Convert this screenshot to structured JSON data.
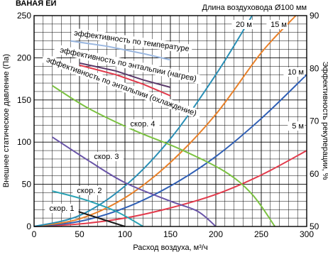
{
  "chart_data": {
    "type": "line",
    "title_partial": "ВАНАЯ ЕЙ",
    "subtitle": "Длина воздуховода Ø100 мм",
    "xlabel": "Расход воздуха, м³/ч",
    "ylabel_left": "Внешнее статическое давление (Па)",
    "ylabel_right": "Эффективность рекуперации, %",
    "xlim": [
      0,
      300
    ],
    "ylim_left": [
      0,
      250
    ],
    "ylim_right": [
      50,
      90
    ],
    "x_ticks": [
      "0",
      "50",
      "100",
      "150",
      "200",
      "250",
      "300"
    ],
    "y_left_ticks": [
      "0",
      "50",
      "100",
      "150",
      "200",
      "250"
    ],
    "y_right_ticks": [
      "50",
      "60",
      "70",
      "80",
      "90"
    ],
    "grid": true,
    "fan_curves": [
      {
        "name": "скор. 1",
        "color": "#1a1a1a",
        "x": [
          30,
          100
        ],
        "y": [
          24,
          0
        ]
      },
      {
        "name": "скор. 2",
        "color": "#2aa3b5",
        "x": [
          20,
          55,
          90,
          120
        ],
        "y": [
          42,
          32,
          18,
          0
        ]
      },
      {
        "name": "скор. 3",
        "color": "#6a55a8",
        "x": [
          20,
          60,
          100,
          150,
          180,
          200
        ],
        "y": [
          106,
          78,
          52,
          30,
          18,
          0
        ]
      },
      {
        "name": "скор. 4",
        "color": "#7cc242",
        "x": [
          20,
          60,
          110,
          160,
          210,
          240,
          265
        ],
        "y": [
          167,
          140,
          114,
          92,
          65,
          38,
          0
        ]
      }
    ],
    "duct_curves": [
      {
        "name": "5 м",
        "color": "#e23a4b",
        "x": [
          0,
          50,
          100,
          150,
          200,
          250,
          300
        ],
        "y": [
          0,
          3,
          10,
          22,
          38,
          61,
          90
        ]
      },
      {
        "name": "10 м",
        "color": "#2f5fb5",
        "x": [
          0,
          50,
          100,
          150,
          200,
          250,
          300
        ],
        "y": [
          0,
          6,
          22,
          48,
          83,
          128,
          180
        ]
      },
      {
        "name": "15 м",
        "color": "#e8812a",
        "x": [
          0,
          50,
          100,
          150,
          200,
          250,
          288
        ],
        "y": [
          0,
          9,
          34,
          76,
          133,
          206,
          250
        ]
      },
      {
        "name": "20 м",
        "color": "#2a8fb5",
        "x": [
          0,
          50,
          100,
          150,
          200,
          240
        ],
        "y": [
          0,
          13,
          48,
          104,
          180,
          250
        ]
      }
    ],
    "efficiency_curves": [
      {
        "name": "эффективность по температуре",
        "color": "#9ab7e0",
        "x": [
          40,
          80,
          120,
          150
        ],
        "y": [
          85.2,
          84.2,
          82.8,
          81.6
        ]
      },
      {
        "name": "эффективность по энтальпии (нагрев)",
        "color": "#5a3a6a",
        "x": [
          50,
          90,
          120,
          150
        ],
        "y": [
          81.0,
          79.5,
          77.8,
          76.4
        ]
      },
      {
        "name": "эффективность по энтальпии (охлаждение)",
        "color": "#e23a4b",
        "x": [
          50,
          90,
          120,
          150
        ],
        "y": [
          80.6,
          78.8,
          77.0,
          74.8
        ]
      }
    ]
  }
}
